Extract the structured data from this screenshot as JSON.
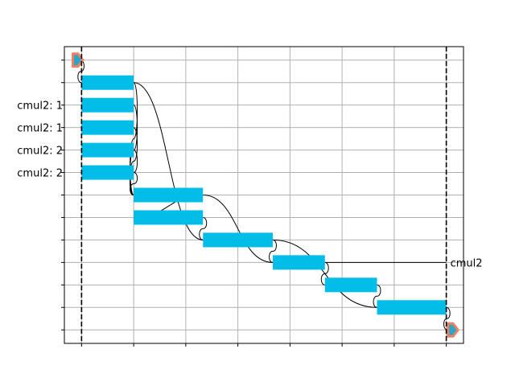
{
  "chart_data": {
    "type": "gantt",
    "title": "",
    "xlabel": "",
    "ylabel": "",
    "grid": true,
    "xlim": [
      -0.33,
      7.33
    ],
    "ylim": [
      12.6,
      -0.6
    ],
    "x_ticks": [
      0,
      1,
      2,
      3,
      4,
      5,
      6,
      7
    ],
    "y_ticks": [
      0,
      1,
      2,
      3,
      4,
      5,
      6,
      7,
      8,
      9,
      10,
      11,
      12
    ],
    "y_tick_labels": [
      "",
      "",
      "cmul2: 1",
      "cmul2: 1",
      "cmul2: 2",
      "cmul2: 2",
      "",
      "",
      "",
      "",
      "",
      "",
      ""
    ],
    "vlines": [
      0,
      7
    ],
    "colors": {
      "task": "#03bde9",
      "marker_fill": "#2ba6c9",
      "marker_edge": "#f08060",
      "edge": "#000000",
      "grid": "#b0b0b0"
    },
    "tasks": [
      {
        "row": 1,
        "start": 0.0,
        "end": 1.0
      },
      {
        "row": 2,
        "start": 0.0,
        "end": 1.0
      },
      {
        "row": 3,
        "start": 0.0,
        "end": 1.0
      },
      {
        "row": 4,
        "start": 0.0,
        "end": 1.0
      },
      {
        "row": 5,
        "start": 0.0,
        "end": 1.0
      },
      {
        "row": 6,
        "start": 1.0,
        "end": 2.33
      },
      {
        "row": 7,
        "start": 1.0,
        "end": 2.33
      },
      {
        "row": 8,
        "start": 2.33,
        "end": 3.67
      },
      {
        "row": 9,
        "start": 3.67,
        "end": 4.67
      },
      {
        "row": 10,
        "start": 4.67,
        "end": 5.67
      },
      {
        "row": 11,
        "start": 5.67,
        "end": 7.0
      }
    ],
    "markers": [
      {
        "row": 0,
        "x": -0.1
      },
      {
        "row": 12,
        "x": 7.1
      }
    ],
    "dependencies": [
      {
        "from": 0,
        "to": 1
      },
      {
        "from": 1,
        "to": 6
      },
      {
        "from": 2,
        "to": 6
      },
      {
        "from": 3,
        "to": 6
      },
      {
        "from": 4,
        "to": 6
      },
      {
        "from": 5,
        "to": 6
      },
      {
        "from": 6,
        "to": 7
      },
      {
        "from": 1,
        "to": 8
      },
      {
        "from": 7,
        "to": 8
      },
      {
        "from": 6,
        "to": 9
      },
      {
        "from": 8,
        "to": 9
      },
      {
        "from": 9,
        "to": 10
      },
      {
        "from": 10,
        "to": 11
      },
      {
        "from": 8,
        "to": 11
      },
      {
        "from": 11,
        "to": 12
      }
    ],
    "annotations": [
      {
        "text": "cmul2",
        "row": 9,
        "x_from": 4.67,
        "x_to": 7.0
      }
    ]
  }
}
